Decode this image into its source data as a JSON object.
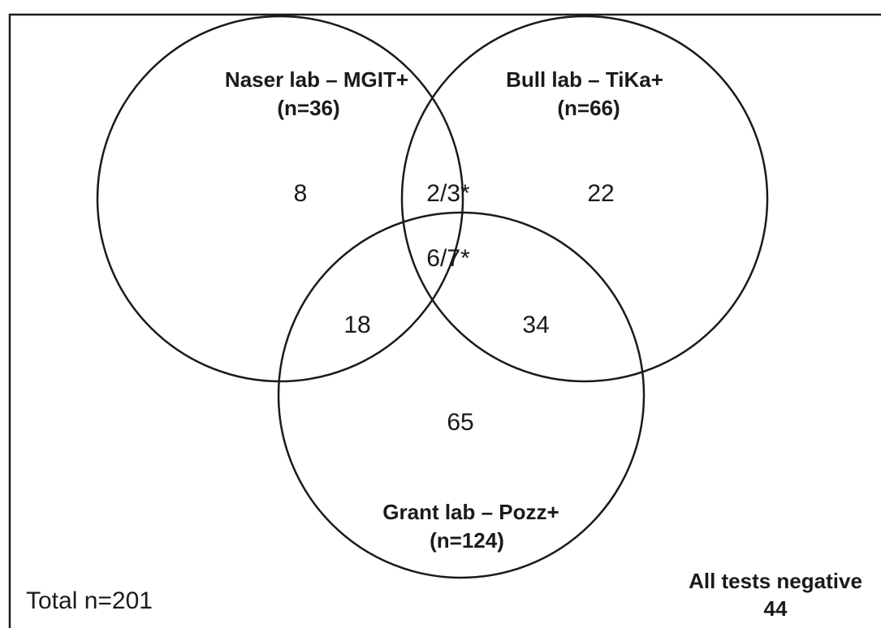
{
  "sets": [
    {
      "name": "Naser lab – MGIT+",
      "n": "(n=36)"
    },
    {
      "name": "Bull lab – TiKa+",
      "n": "(n=66)"
    },
    {
      "name": "Grant lab – Pozz+",
      "n": "(n=124)"
    }
  ],
  "regions": [
    "8",
    "2/3*",
    "22",
    "6/7*",
    "18",
    "34",
    "65"
  ],
  "total": "Total n=201",
  "negative": {
    "label": "All tests negative",
    "count": "44"
  }
}
